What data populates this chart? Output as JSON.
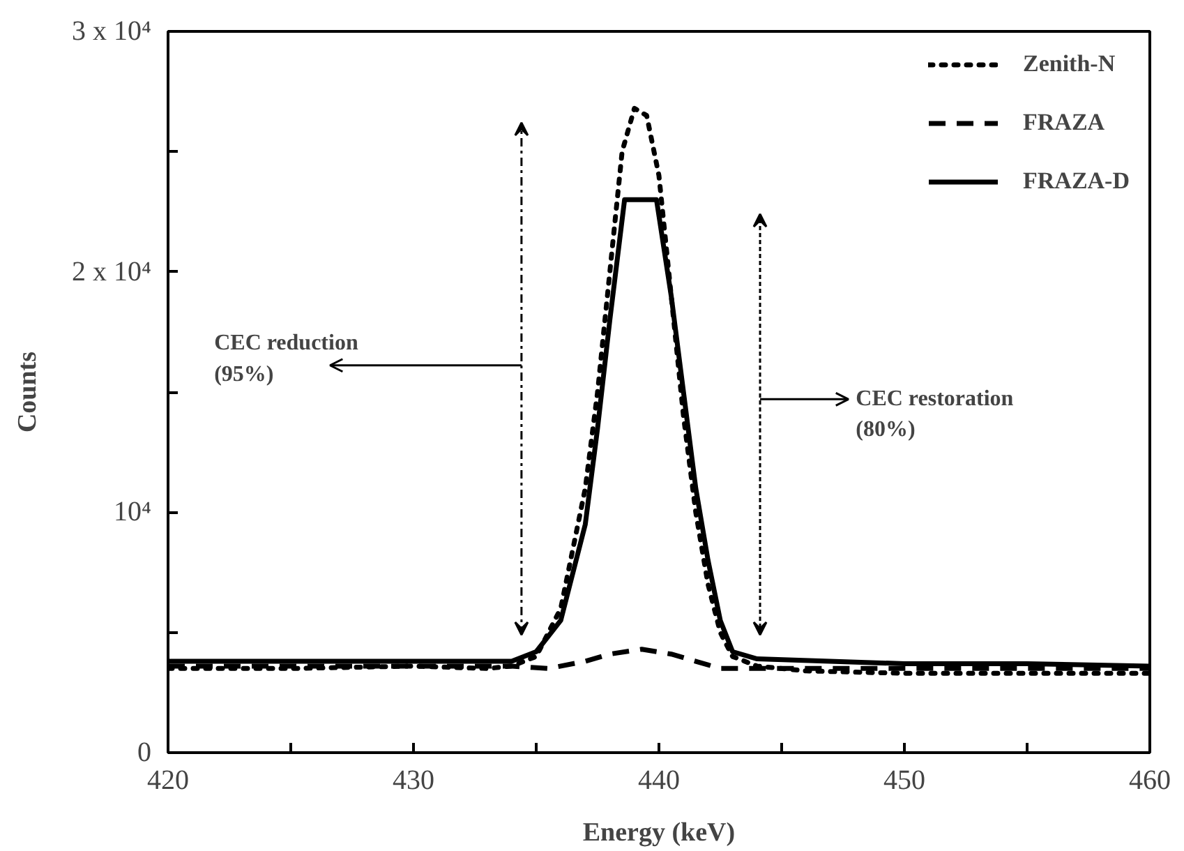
{
  "chart_data": {
    "type": "line",
    "xlabel": "Energy (keV)",
    "ylabel": "Counts",
    "xlim": [
      420,
      460
    ],
    "ylim": [
      0,
      30000
    ],
    "xticks": [
      420,
      {
        "value": 425,
        "label": null
      },
      430,
      {
        "value": 435,
        "label": null
      },
      440,
      {
        "value": 445,
        "label": null
      },
      450,
      {
        "value": 455,
        "label": null
      },
      460
    ],
    "yticks": [
      0,
      {
        "value": 5000,
        "label": null
      },
      {
        "value": 10000,
        "label": "10⁴"
      },
      {
        "value": 15000,
        "label": null
      },
      {
        "value": 20000,
        "label": "2 x 10⁴"
      },
      {
        "value": 25000,
        "label": null
      },
      {
        "value": 30000,
        "label": "3 x 10⁴"
      }
    ],
    "grid": false,
    "legend": "top right",
    "marker": "none",
    "series": [
      {
        "name": "Zenith-N",
        "color": "#000000",
        "line_style": "dotted",
        "x": [
          420,
          425,
          430,
          433,
          434,
          435,
          436,
          437,
          437.5,
          438,
          438.5,
          439,
          439.5,
          440,
          440.5,
          441,
          441.5,
          442,
          442.5,
          443,
          444,
          446,
          450,
          455,
          460
        ],
        "values": [
          3500,
          3500,
          3600,
          3500,
          3600,
          4000,
          6000,
          11000,
          15000,
          20000,
          25000,
          26800,
          26500,
          24000,
          19000,
          14000,
          10000,
          7000,
          5000,
          4000,
          3600,
          3400,
          3300,
          3300,
          3300
        ]
      },
      {
        "name": "FRAZA",
        "color": "#000000",
        "line_style": "dashed",
        "x": [
          420,
          430,
          434,
          435.5,
          437,
          438,
          439.3,
          440.5,
          441.5,
          442.5,
          445,
          450,
          460
        ],
        "values": [
          3600,
          3600,
          3600,
          3500,
          3800,
          4100,
          4300,
          4100,
          3800,
          3500,
          3500,
          3500,
          3500
        ]
      },
      {
        "name": "FRAZA-D",
        "color": "#000000",
        "line_style": "solid",
        "x": [
          420,
          425,
          430,
          434,
          435,
          436,
          437,
          437.5,
          438,
          438.6,
          439.9,
          440.5,
          441,
          441.5,
          442,
          442.5,
          443,
          444,
          450,
          455,
          460
        ],
        "values": [
          3800,
          3800,
          3800,
          3800,
          4200,
          5500,
          9500,
          13500,
          18000,
          23000,
          23000,
          19000,
          15000,
          11000,
          8000,
          5500,
          4200,
          3900,
          3700,
          3700,
          3600
        ]
      }
    ],
    "annotations": [
      "CEC reduction\n(95%)",
      "CEC restoration\n(80%)"
    ]
  }
}
